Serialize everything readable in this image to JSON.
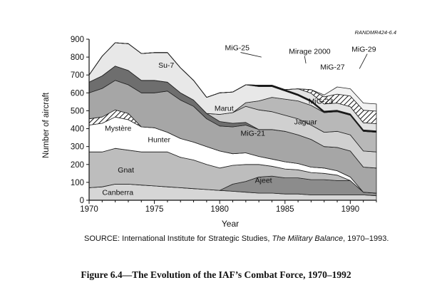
{
  "chart_data": {
    "type": "area",
    "stacked": true,
    "code": "RANDMR424-6.4",
    "ylabel": "Number of aircraft",
    "xlabel": "Year",
    "xlim": [
      1970,
      1992
    ],
    "ylim": [
      0,
      900
    ],
    "x_ticks": [
      1970,
      1975,
      1980,
      1985,
      1990
    ],
    "y_ticks": [
      0,
      100,
      200,
      300,
      400,
      500,
      600,
      700,
      800,
      900
    ],
    "x": [
      1970,
      1971,
      1972,
      1973,
      1974,
      1975,
      1976,
      1977,
      1978,
      1979,
      1980,
      1981,
      1982,
      1983,
      1984,
      1985,
      1986,
      1987,
      1988,
      1989,
      1990,
      1991,
      1992
    ],
    "series": [
      {
        "name": "Canberra",
        "fill": "#d6d6d6",
        "values": [
          70,
          75,
          90,
          90,
          85,
          80,
          75,
          70,
          65,
          60,
          55,
          50,
          45,
          40,
          40,
          35,
          35,
          30,
          30,
          30,
          30,
          30,
          25
        ]
      },
      {
        "name": "Ajeet",
        "fill": "#8c8c8c",
        "values": [
          0,
          0,
          0,
          0,
          0,
          0,
          0,
          0,
          0,
          0,
          0,
          40,
          60,
          90,
          95,
          90,
          90,
          85,
          85,
          80,
          80,
          15,
          15
        ]
      },
      {
        "name": "Gnat",
        "fill": "#bdbdbd",
        "values": [
          200,
          195,
          200,
          190,
          185,
          190,
          195,
          170,
          160,
          140,
          125,
          105,
          95,
          70,
          55,
          50,
          45,
          40,
          35,
          30,
          0,
          0,
          0
        ]
      },
      {
        "name": "Hunter",
        "fill": "#ffffff",
        "values": [
          150,
          160,
          175,
          170,
          140,
          135,
          110,
          105,
          100,
          100,
          95,
          65,
          65,
          45,
          40,
          40,
          35,
          30,
          30,
          25,
          20,
          0,
          0
        ]
      },
      {
        "name": "Mystère",
        "fill": "hatch",
        "values": [
          35,
          35,
          40,
          35,
          0,
          0,
          0,
          0,
          0,
          0,
          0,
          0,
          0,
          0,
          0,
          0,
          0,
          0,
          0,
          0,
          0,
          0,
          0
        ]
      },
      {
        "name": "MiG-21",
        "fill": "#a6a6a6",
        "values": [
          145,
          160,
          165,
          160,
          190,
          195,
          230,
          215,
          200,
          155,
          140,
          150,
          155,
          150,
          165,
          170,
          160,
          155,
          120,
          130,
          145,
          140,
          140
        ]
      },
      {
        "name": "Marut",
        "fill": "#6e6e6e",
        "values": [
          60,
          70,
          80,
          80,
          70,
          70,
          50,
          40,
          35,
          30,
          25,
          20,
          15,
          0,
          0,
          0,
          0,
          0,
          0,
          0,
          0,
          0,
          0
        ]
      },
      {
        "name": "Jaguar",
        "fill": "#d0d0d0",
        "values": [
          0,
          0,
          0,
          0,
          0,
          0,
          0,
          0,
          0,
          0,
          40,
          60,
          90,
          110,
          100,
          90,
          90,
          80,
          80,
          90,
          90,
          90,
          90
        ]
      },
      {
        "name": "MiG-23",
        "fill": "#b8b8b8",
        "values": [
          0,
          0,
          0,
          0,
          0,
          0,
          0,
          0,
          0,
          0,
          0,
          0,
          20,
          50,
          80,
          90,
          100,
          110,
          110,
          110,
          110,
          110,
          110
        ]
      },
      {
        "name": "Su-7",
        "fill": "#e8e8e8",
        "values": [
          40,
          110,
          130,
          150,
          150,
          155,
          165,
          140,
          110,
          90,
          120,
          115,
          100,
          80,
          60,
          45,
          30,
          20,
          0,
          0,
          0,
          0,
          0
        ]
      },
      {
        "name": "MiG-25",
        "fill": "#111111",
        "values": [
          0,
          0,
          0,
          0,
          0,
          0,
          0,
          0,
          0,
          0,
          0,
          0,
          0,
          8,
          8,
          8,
          8,
          8,
          8,
          8,
          8,
          8,
          8
        ]
      },
      {
        "name": "Mirage 2000",
        "fill": "#e3e3e3",
        "values": [
          0,
          0,
          0,
          0,
          0,
          0,
          0,
          0,
          0,
          0,
          0,
          0,
          0,
          0,
          0,
          0,
          30,
          40,
          40,
          40,
          40,
          40,
          40
        ]
      },
      {
        "name": "MiG-27",
        "fill": "hatch",
        "values": [
          0,
          0,
          0,
          0,
          0,
          0,
          0,
          0,
          0,
          0,
          0,
          0,
          0,
          0,
          0,
          0,
          0,
          20,
          40,
          50,
          60,
          70,
          70
        ]
      },
      {
        "name": "MiG-29",
        "fill": "#f2f2f2",
        "values": [
          0,
          0,
          0,
          0,
          0,
          0,
          0,
          0,
          0,
          0,
          0,
          0,
          0,
          0,
          0,
          0,
          0,
          0,
          10,
          40,
          40,
          40,
          40
        ]
      }
    ],
    "area_labels": [
      {
        "name": "Canberra",
        "x": 1971.0,
        "y": 30
      },
      {
        "name": "Ajeet",
        "x": 1982.7,
        "y": 98
      },
      {
        "name": "Gnat",
        "x": 1972.2,
        "y": 155
      },
      {
        "name": "Hunter",
        "x": 1974.5,
        "y": 325
      },
      {
        "name": "Mystère",
        "x": 1971.2,
        "y": 388
      },
      {
        "name": "MiG-21",
        "x": 1981.6,
        "y": 360
      },
      {
        "name": "Marut",
        "x": 1979.6,
        "y": 500
      },
      {
        "name": "Jaguar",
        "x": 1985.7,
        "y": 425
      },
      {
        "name": "MiG-23",
        "x": 1986.8,
        "y": 540
      },
      {
        "name": "Su-7",
        "x": 1975.3,
        "y": 740
      },
      {
        "name": "MiG-27",
        "x": 1987.7,
        "y": 730
      }
    ],
    "callouts": [
      {
        "name": "MiG-25",
        "text_x": 1980.4,
        "text_y": 838,
        "to_x": 1983.2,
        "to_y": 800
      },
      {
        "name": "Mirage 2000",
        "text_x": 1985.3,
        "text_y": 818,
        "to_x": 1986.6,
        "to_y": 765
      },
      {
        "name": "MiG-29",
        "text_x": 1990.1,
        "text_y": 830,
        "to_x": 1990.7,
        "to_y": 735
      }
    ]
  },
  "source": {
    "prefix": "SOURCE:  International Institute for Strategic Studies, ",
    "title": "The Military Balance",
    "suffix": ", 1970–1993."
  },
  "figure_title": "Figure 6.4—The Evolution of the IAF’s Combat Force, 1970–1992"
}
